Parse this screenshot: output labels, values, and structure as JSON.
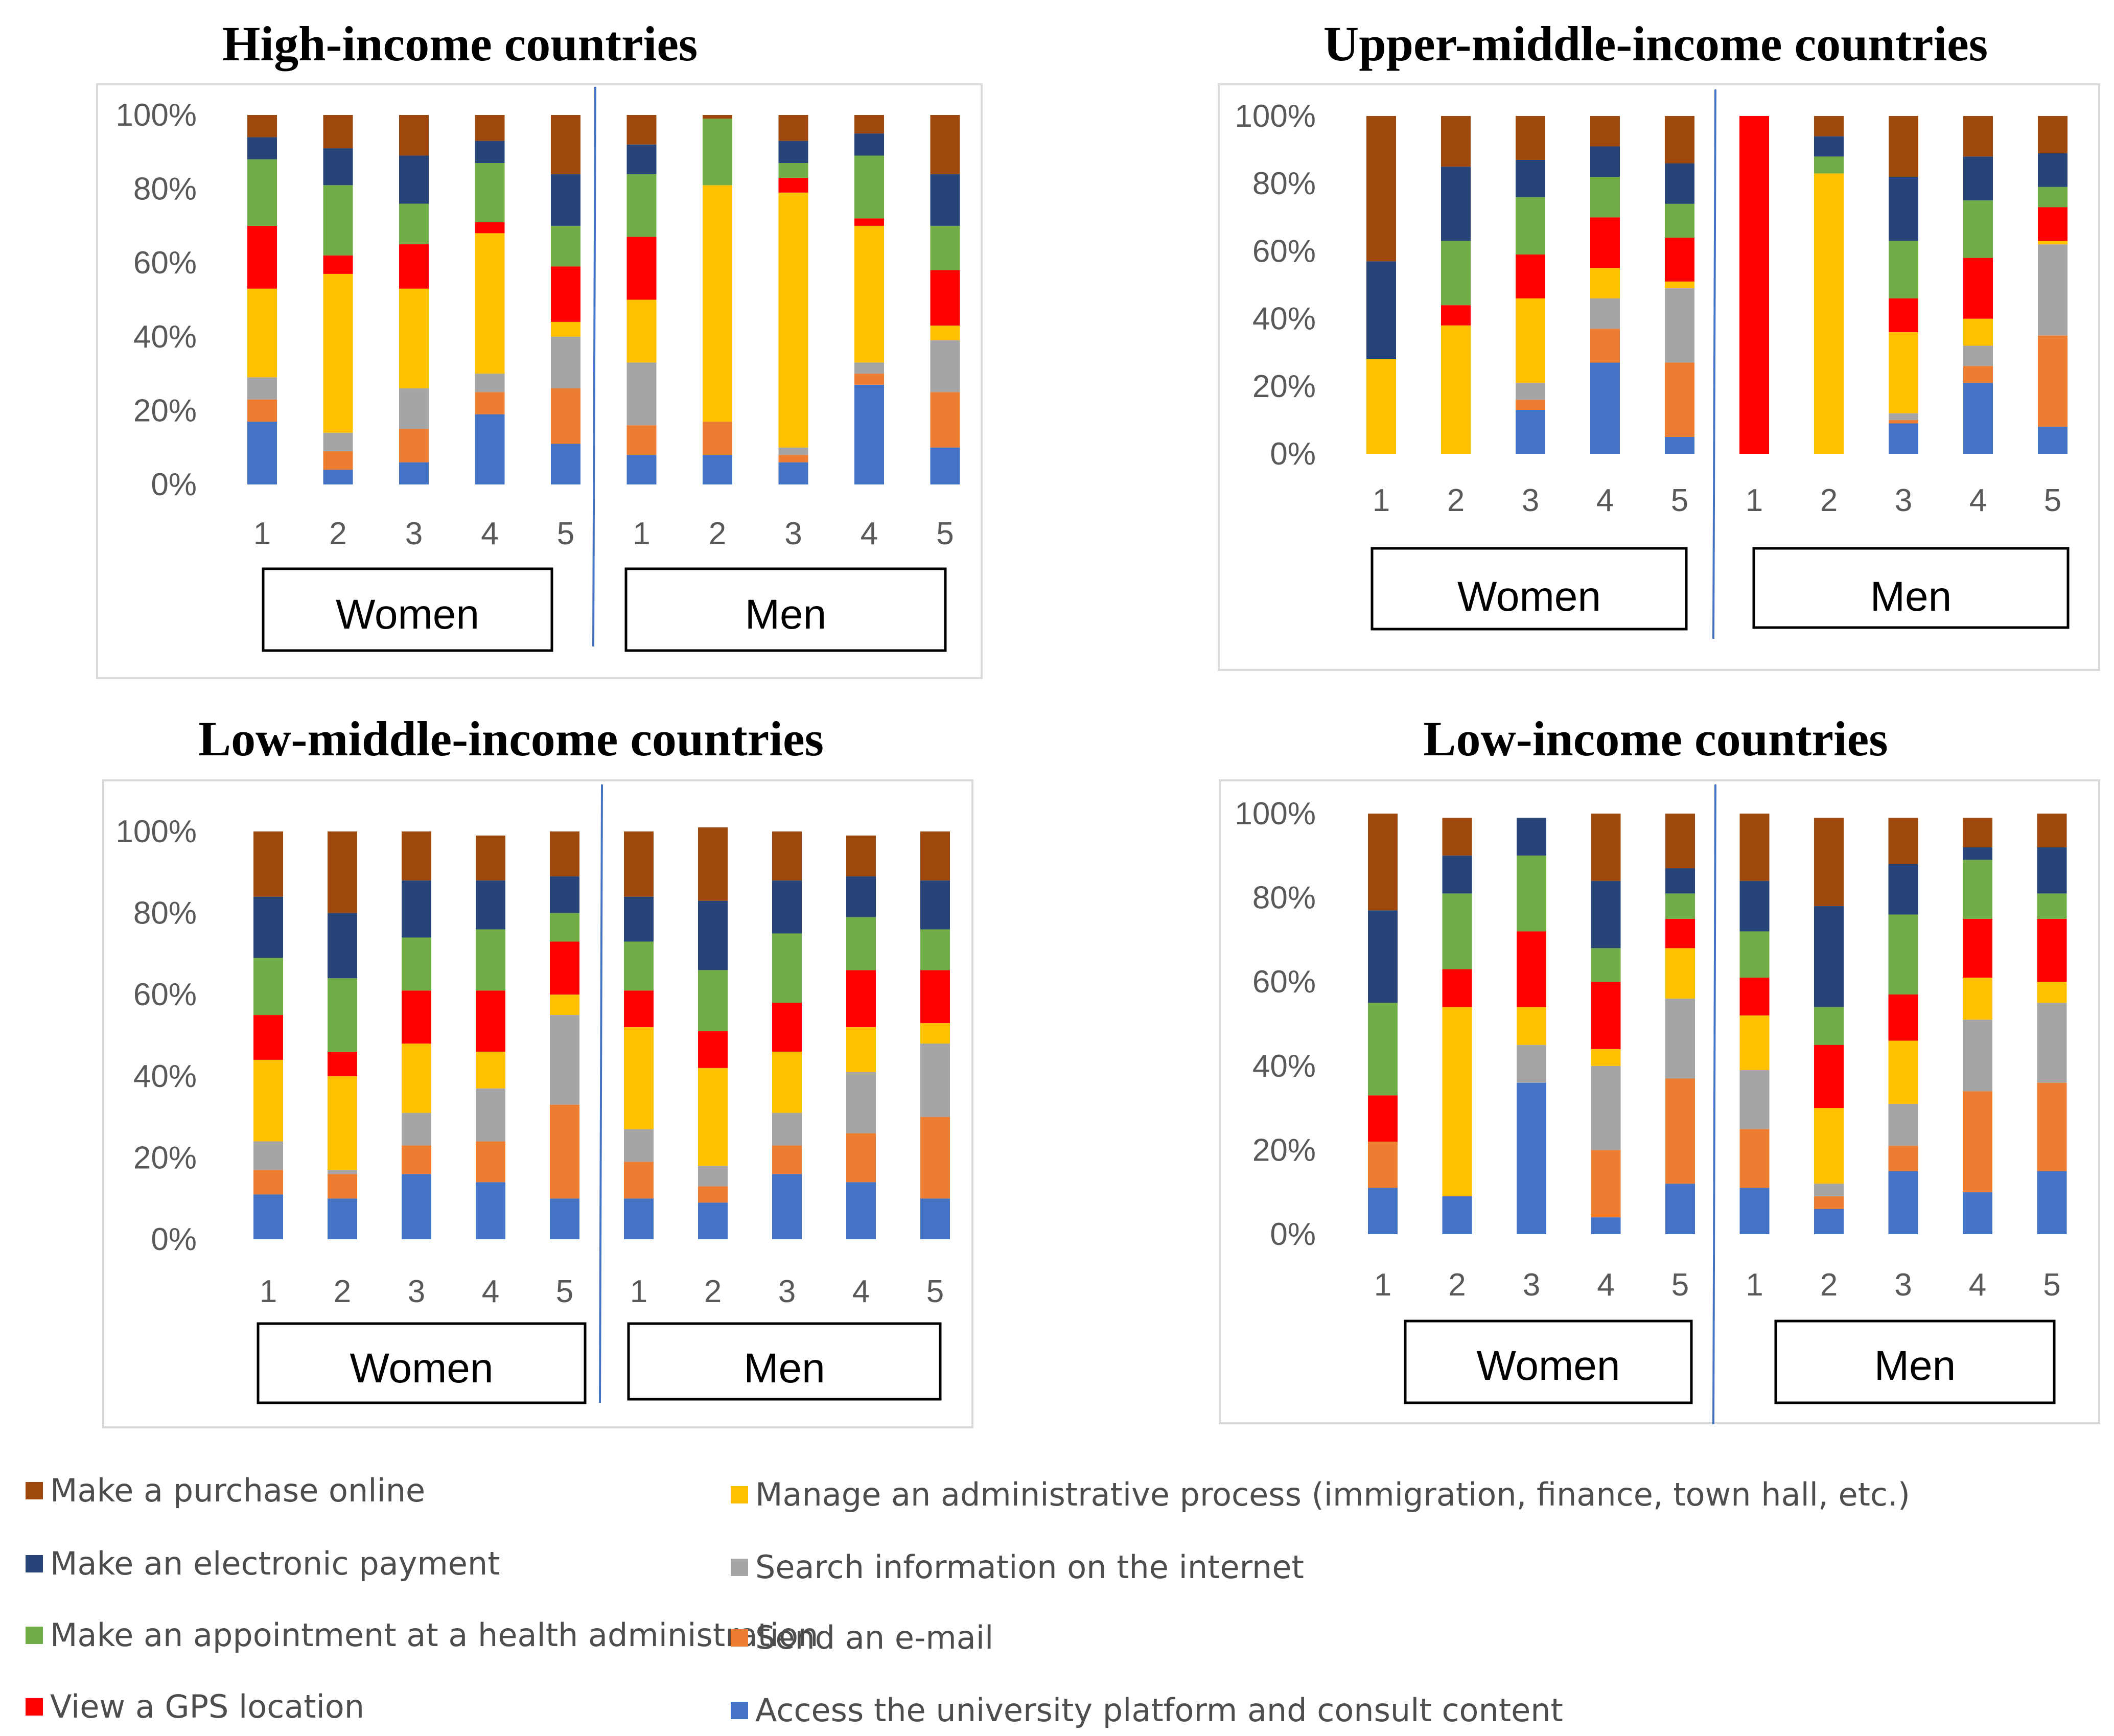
{
  "colors": {
    "purchase": "#9e480e",
    "payment": "#264478",
    "appointment": "#70ad47",
    "gps": "#ff0000",
    "admin": "#ffc000",
    "search": "#a5a5a5",
    "email": "#ed7d31",
    "platform": "#4472c4",
    "divider": "#4472c4"
  },
  "legend": [
    {
      "key": "purchase",
      "label": "Make a purchase online"
    },
    {
      "key": "payment",
      "label": "Make an electronic payment"
    },
    {
      "key": "appointment",
      "label": "Make an appointment at a health administration"
    },
    {
      "key": "gps",
      "label": "View a GPS location"
    },
    {
      "key": "admin",
      "label": "Manage an administrative process (immigration, finance, town hall, etc.)"
    },
    {
      "key": "search",
      "label": "Search information on the internet"
    },
    {
      "key": "email",
      "label": "Send an e-mail"
    },
    {
      "key": "platform",
      "label": "Access the university platform and consult content"
    }
  ],
  "panels": [
    {
      "title": "High-income countries"
    },
    {
      "title": "Upper-middle-income countries"
    },
    {
      "title": "Low-middle-income countries"
    },
    {
      "title": "Low-income countries"
    }
  ],
  "chart_data": [
    {
      "type": "bar",
      "stacked": true,
      "title": "High-income countries",
      "ylim": [
        0,
        100
      ],
      "yticks": [
        "0%",
        "20%",
        "40%",
        "60%",
        "80%",
        "100%"
      ],
      "groups": [
        "Women",
        "Men"
      ],
      "categories": [
        "1",
        "2",
        "3",
        "4",
        "5",
        "1",
        "2",
        "3",
        "4",
        "5"
      ],
      "series": [
        {
          "key": "platform",
          "values": [
            17,
            4,
            6,
            19,
            11,
            8,
            8,
            6,
            27,
            10
          ]
        },
        {
          "key": "email",
          "values": [
            6,
            5,
            9,
            6,
            15,
            8,
            9,
            2,
            3,
            15
          ]
        },
        {
          "key": "search",
          "values": [
            6,
            5,
            11,
            5,
            14,
            17,
            0,
            2,
            3,
            14
          ]
        },
        {
          "key": "admin",
          "values": [
            24,
            43,
            27,
            38,
            4,
            17,
            64,
            69,
            37,
            4
          ]
        },
        {
          "key": "gps",
          "values": [
            17,
            5,
            12,
            3,
            15,
            17,
            0,
            4,
            2,
            15
          ]
        },
        {
          "key": "appointment",
          "values": [
            18,
            19,
            11,
            16,
            11,
            17,
            18,
            4,
            17,
            12
          ]
        },
        {
          "key": "payment",
          "values": [
            6,
            10,
            13,
            6,
            14,
            8,
            0,
            6,
            6,
            14
          ]
        },
        {
          "key": "purchase",
          "values": [
            6,
            9,
            11,
            7,
            16,
            8,
            1,
            7,
            5,
            16
          ]
        }
      ]
    },
    {
      "type": "bar",
      "stacked": true,
      "title": "Upper-middle-income countries",
      "ylim": [
        0,
        100
      ],
      "yticks": [
        "0%",
        "20%",
        "40%",
        "60%",
        "80%",
        "100%"
      ],
      "groups": [
        "Women",
        "Men"
      ],
      "categories": [
        "1",
        "2",
        "3",
        "4",
        "5",
        "1",
        "2",
        "3",
        "4",
        "5"
      ],
      "series": [
        {
          "key": "platform",
          "values": [
            0,
            0,
            13,
            27,
            5,
            0,
            0,
            9,
            21,
            8
          ]
        },
        {
          "key": "email",
          "values": [
            0,
            0,
            3,
            10,
            22,
            0,
            0,
            1,
            5,
            27
          ]
        },
        {
          "key": "search",
          "values": [
            0,
            0,
            5,
            9,
            22,
            0,
            0,
            2,
            6,
            27
          ]
        },
        {
          "key": "admin",
          "values": [
            28,
            38,
            25,
            9,
            2,
            0,
            83,
            24,
            8,
            1
          ]
        },
        {
          "key": "gps",
          "values": [
            0,
            6,
            13,
            15,
            13,
            100,
            0,
            10,
            18,
            10
          ]
        },
        {
          "key": "appointment",
          "values": [
            0,
            19,
            17,
            12,
            10,
            0,
            5,
            17,
            17,
            6
          ]
        },
        {
          "key": "payment",
          "values": [
            29,
            22,
            11,
            9,
            12,
            0,
            6,
            19,
            13,
            10
          ]
        },
        {
          "key": "purchase",
          "values": [
            43,
            15,
            13,
            9,
            14,
            0,
            6,
            18,
            12,
            11
          ]
        }
      ]
    },
    {
      "type": "bar",
      "stacked": true,
      "title": "Low-middle-income countries",
      "ylim": [
        0,
        100
      ],
      "yticks": [
        "0%",
        "20%",
        "40%",
        "60%",
        "80%",
        "100%"
      ],
      "groups": [
        "Women",
        "Men"
      ],
      "categories": [
        "1",
        "2",
        "3",
        "4",
        "5",
        "1",
        "2",
        "3",
        "4",
        "5"
      ],
      "series": [
        {
          "key": "platform",
          "values": [
            11,
            10,
            16,
            14,
            10,
            10,
            9,
            16,
            14,
            10
          ]
        },
        {
          "key": "email",
          "values": [
            6,
            6,
            7,
            10,
            23,
            9,
            4,
            7,
            12,
            20
          ]
        },
        {
          "key": "search",
          "values": [
            7,
            1,
            8,
            13,
            22,
            8,
            5,
            8,
            15,
            18
          ]
        },
        {
          "key": "admin",
          "values": [
            20,
            23,
            17,
            9,
            5,
            25,
            24,
            15,
            11,
            5
          ]
        },
        {
          "key": "gps",
          "values": [
            11,
            6,
            13,
            15,
            13,
            9,
            9,
            12,
            14,
            13
          ]
        },
        {
          "key": "appointment",
          "values": [
            14,
            18,
            13,
            15,
            7,
            12,
            15,
            17,
            13,
            10
          ]
        },
        {
          "key": "payment",
          "values": [
            15,
            16,
            14,
            12,
            9,
            11,
            17,
            13,
            10,
            12
          ]
        },
        {
          "key": "purchase",
          "values": [
            16,
            20,
            12,
            11,
            11,
            16,
            18,
            12,
            10,
            12
          ]
        }
      ]
    },
    {
      "type": "bar",
      "stacked": true,
      "title": "Low-income countries",
      "ylim": [
        0,
        100
      ],
      "yticks": [
        "0%",
        "20%",
        "40%",
        "60%",
        "80%",
        "100%"
      ],
      "groups": [
        "Women",
        "Men"
      ],
      "categories": [
        "1",
        "2",
        "3",
        "4",
        "5",
        "1",
        "2",
        "3",
        "4",
        "5"
      ],
      "series": [
        {
          "key": "platform",
          "values": [
            11,
            9,
            36,
            4,
            12,
            11,
            6,
            15,
            10,
            15
          ]
        },
        {
          "key": "email",
          "values": [
            11,
            0,
            0,
            16,
            25,
            14,
            3,
            6,
            24,
            21
          ]
        },
        {
          "key": "search",
          "values": [
            0,
            0,
            9,
            20,
            19,
            14,
            3,
            10,
            17,
            19
          ]
        },
        {
          "key": "admin",
          "values": [
            0,
            45,
            9,
            4,
            12,
            13,
            18,
            15,
            10,
            5
          ]
        },
        {
          "key": "gps",
          "values": [
            11,
            9,
            18,
            16,
            7,
            9,
            15,
            11,
            14,
            15
          ]
        },
        {
          "key": "appointment",
          "values": [
            22,
            18,
            18,
            8,
            6,
            11,
            9,
            19,
            14,
            6
          ]
        },
        {
          "key": "payment",
          "values": [
            22,
            9,
            9,
            16,
            6,
            12,
            24,
            12,
            3,
            11
          ]
        },
        {
          "key": "purchase",
          "values": [
            23,
            9,
            0,
            16,
            13,
            16,
            21,
            11,
            7,
            8
          ]
        }
      ]
    }
  ]
}
